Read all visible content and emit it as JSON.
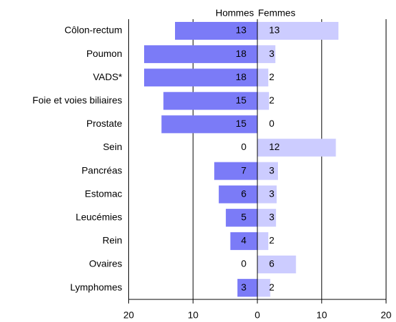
{
  "chart_data": {
    "type": "butterfly",
    "categories": [
      "Côlon-rectum",
      "Poumon",
      "VADS*",
      "Foie et voies biliaires",
      "Prostate",
      "Sein",
      "Pancréas",
      "Estomac",
      "Leucémies",
      "Rein",
      "Ovaires",
      "Lymphomes"
    ],
    "series": [
      {
        "name": "Hommes",
        "color": "#7b7bf7",
        "side": "left",
        "values": [
          12.8,
          17.6,
          17.6,
          14.6,
          14.9,
          0,
          6.7,
          6.0,
          4.9,
          4.2,
          0,
          3.1
        ],
        "value_labels": [
          "13",
          "18",
          "18",
          "15",
          "15",
          "0",
          "7",
          "6",
          "5",
          "4",
          "0",
          "3"
        ]
      },
      {
        "name": "Femmes",
        "color": "#ccccff",
        "side": "right",
        "values": [
          12.6,
          2.8,
          1.7,
          1.8,
          0,
          12.2,
          3.2,
          3.0,
          2.9,
          1.7,
          6.0,
          2.0
        ],
        "value_labels": [
          "13",
          "3",
          "2",
          "2",
          "0",
          "12",
          "3",
          "3",
          "3",
          "2",
          "6",
          "2"
        ]
      }
    ],
    "xlim": [
      -20,
      20
    ],
    "xticks": [
      {
        "value": -20,
        "label": "20"
      },
      {
        "value": -10,
        "label": "10"
      },
      0,
      10,
      20
    ],
    "grid": true
  }
}
